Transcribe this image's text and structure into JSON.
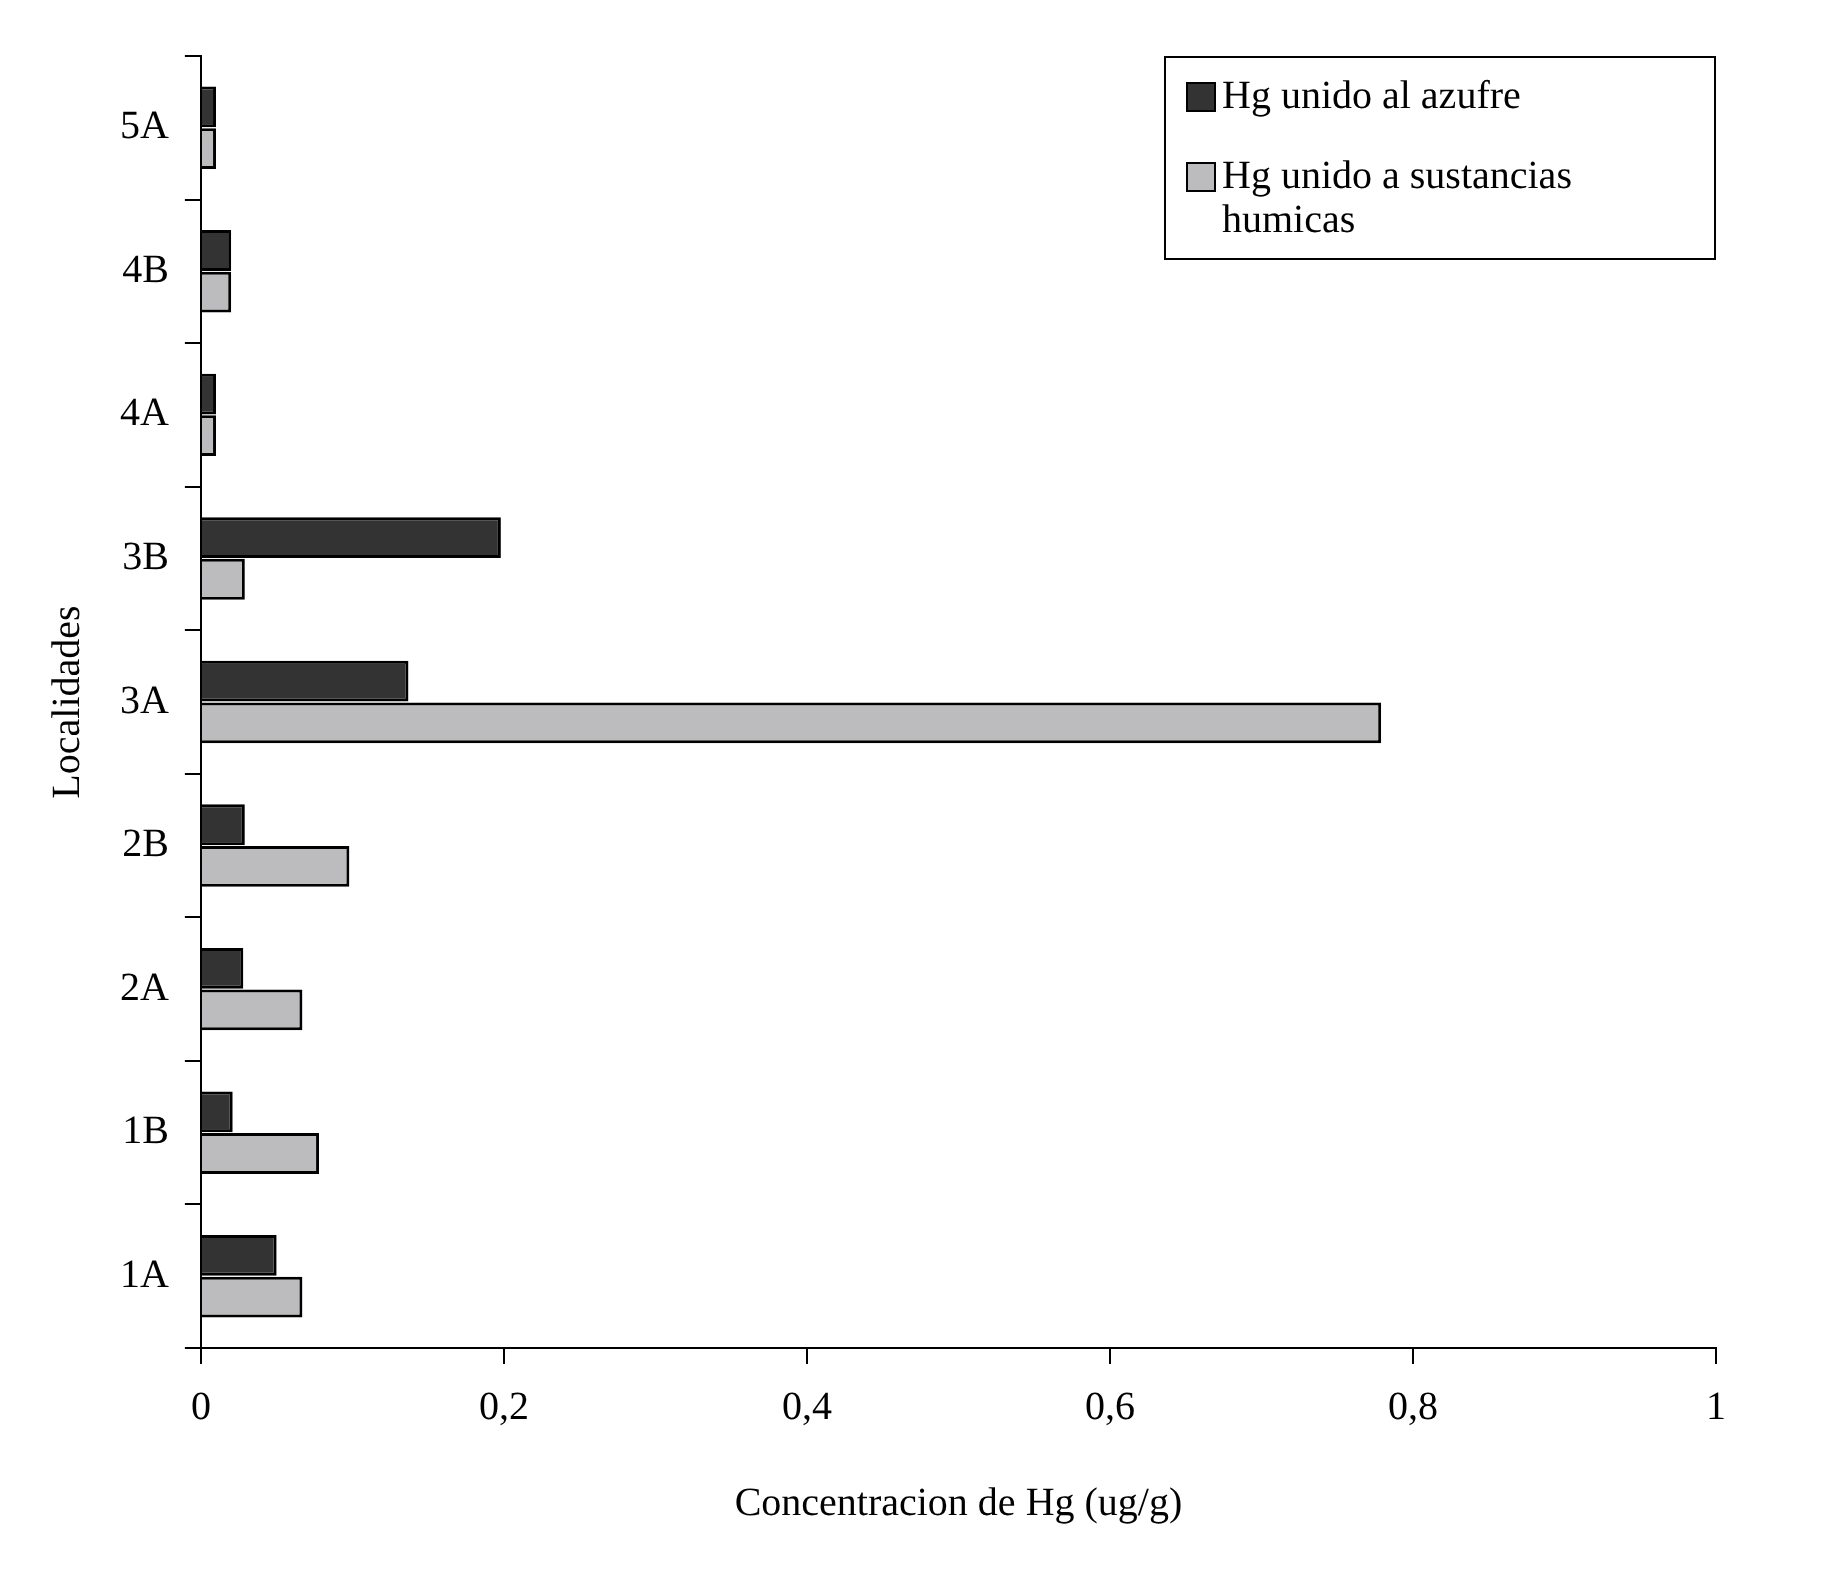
{
  "chart_data": {
    "type": "bar",
    "orientation": "horizontal",
    "xlabel": "Concentracion de Hg (ug/g)",
    "ylabel": "Localidades",
    "categories": [
      "5A",
      "4B",
      "4A",
      "3B",
      "3A",
      "2B",
      "2A",
      "1B",
      "1A"
    ],
    "series": [
      {
        "name": "Hg unido al azufre",
        "color": "#333333",
        "values": [
          0.01,
          0.02,
          0.01,
          0.198,
          0.137,
          0.029,
          0.028,
          0.021,
          0.05
        ]
      },
      {
        "name": "Hg unido a sustancias humicas",
        "color": "#bcbcbe",
        "values": [
          0.01,
          0.02,
          0.01,
          0.029,
          0.779,
          0.098,
          0.067,
          0.078,
          0.067
        ]
      }
    ],
    "xlim": [
      0,
      1
    ],
    "xticks": [
      0,
      {
        "value": 0.2,
        "label": "0,2"
      },
      {
        "value": 0.4,
        "label": "0,4"
      },
      {
        "value": 0.6,
        "label": "0,6"
      },
      {
        "value": 0.8,
        "label": "0,8"
      },
      1
    ],
    "legend": "top right",
    "grid": false
  }
}
